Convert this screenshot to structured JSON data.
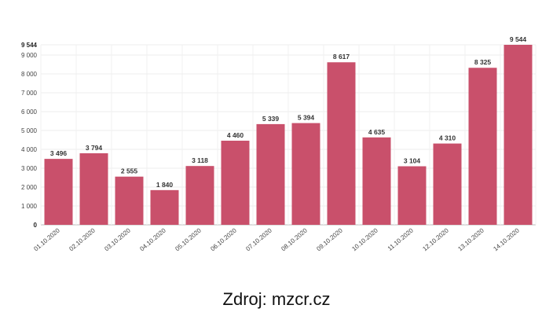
{
  "chart_data": {
    "type": "bar",
    "categories": [
      "01.10.2020",
      "02.10.2020",
      "03.10.2020",
      "04.10.2020",
      "05.10.2020",
      "06.10.2020",
      "07.10.2020",
      "08.10.2020",
      "09.10.2020",
      "10.10.2020",
      "11.10.2020",
      "12.10.2020",
      "13.10.2020",
      "14.10.2020"
    ],
    "values": [
      3496,
      3794,
      2555,
      1840,
      3118,
      4460,
      5339,
      5394,
      8617,
      4635,
      3104,
      4310,
      8325,
      9544
    ],
    "value_labels": [
      "3 496",
      "3 794",
      "2 555",
      "1 840",
      "3 118",
      "4 460",
      "5 339",
      "5 394",
      "8 617",
      "4 635",
      "3 104",
      "4 310",
      "8 325",
      "9 544"
    ],
    "y_ticks": [
      0,
      1000,
      2000,
      3000,
      4000,
      5000,
      6000,
      7000,
      8000,
      9000
    ],
    "y_tick_labels": [
      "0",
      "1 000",
      "2 000",
      "3 000",
      "4 000",
      "5 000",
      "6 000",
      "7 000",
      "8 000",
      "9 000"
    ],
    "y_max_label": "9 544",
    "ylim": [
      0,
      9544
    ],
    "bar_color": "#c9506b",
    "grid": true,
    "title": "",
    "xlabel": "",
    "ylabel": ""
  },
  "source_text": "Zdroj: mzcr.cz"
}
